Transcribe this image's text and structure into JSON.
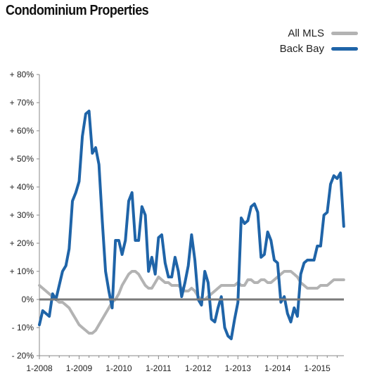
{
  "title": "Condominium Properties",
  "colors": {
    "all_mls": "#b3b3b3",
    "back_bay": "#1f64a8",
    "zero_line": "#7a7a7a",
    "axis": "#888888"
  },
  "chart_data": {
    "type": "line",
    "title": "Condominium Properties",
    "xlabel": "",
    "ylabel": "",
    "ylim": [
      -20,
      80
    ],
    "xlim": [
      2008.0,
      2015.67
    ],
    "grid": false,
    "legend_position": "top-right",
    "y_ticks": [
      {
        "value": 80,
        "label": "+ 80%"
      },
      {
        "value": 70,
        "label": "+ 70%"
      },
      {
        "value": 60,
        "label": "+ 60%"
      },
      {
        "value": 50,
        "label": "+ 50%"
      },
      {
        "value": 40,
        "label": "+ 40%"
      },
      {
        "value": 30,
        "label": "+ 30%"
      },
      {
        "value": 20,
        "label": "+ 20%"
      },
      {
        "value": 10,
        "label": "+ 10%"
      },
      {
        "value": 0,
        "label": "0%"
      },
      {
        "value": -10,
        "label": "- 10%"
      },
      {
        "value": -20,
        "label": "- 20%"
      }
    ],
    "x_ticks": [
      {
        "value": 2008,
        "label": "1-2008"
      },
      {
        "value": 2009,
        "label": "1-2009"
      },
      {
        "value": 2010,
        "label": "1-2010"
      },
      {
        "value": 2011,
        "label": "1-2011"
      },
      {
        "value": 2012,
        "label": "1-2012"
      },
      {
        "value": 2013,
        "label": "1-2013"
      },
      {
        "value": 2014,
        "label": "1-2014"
      },
      {
        "value": 2015,
        "label": "1-2015"
      }
    ],
    "series": [
      {
        "name": "All MLS",
        "points": [
          [
            2008.0,
            5
          ],
          [
            2008.083,
            4
          ],
          [
            2008.167,
            3
          ],
          [
            2008.25,
            2
          ],
          [
            2008.333,
            1
          ],
          [
            2008.417,
            0
          ],
          [
            2008.5,
            -1
          ],
          [
            2008.583,
            -1
          ],
          [
            2008.667,
            -2
          ],
          [
            2008.75,
            -3
          ],
          [
            2008.833,
            -5
          ],
          [
            2008.917,
            -7
          ],
          [
            2009.0,
            -9
          ],
          [
            2009.083,
            -10
          ],
          [
            2009.167,
            -11
          ],
          [
            2009.25,
            -12
          ],
          [
            2009.333,
            -12
          ],
          [
            2009.417,
            -11
          ],
          [
            2009.5,
            -9
          ],
          [
            2009.583,
            -7
          ],
          [
            2009.667,
            -5
          ],
          [
            2009.75,
            -3
          ],
          [
            2009.833,
            -1
          ],
          [
            2009.917,
            0
          ],
          [
            2010.0,
            2
          ],
          [
            2010.083,
            5
          ],
          [
            2010.167,
            7
          ],
          [
            2010.25,
            9
          ],
          [
            2010.333,
            10
          ],
          [
            2010.417,
            10
          ],
          [
            2010.5,
            9
          ],
          [
            2010.583,
            7
          ],
          [
            2010.667,
            5
          ],
          [
            2010.75,
            4
          ],
          [
            2010.833,
            4
          ],
          [
            2010.917,
            6
          ],
          [
            2011.0,
            8
          ],
          [
            2011.083,
            7
          ],
          [
            2011.167,
            6
          ],
          [
            2011.25,
            6
          ],
          [
            2011.333,
            5
          ],
          [
            2011.417,
            5
          ],
          [
            2011.5,
            5
          ],
          [
            2011.583,
            4
          ],
          [
            2011.667,
            3
          ],
          [
            2011.75,
            3
          ],
          [
            2011.833,
            4
          ],
          [
            2011.917,
            3
          ],
          [
            2012.0,
            1
          ],
          [
            2012.083,
            0
          ],
          [
            2012.167,
            0
          ],
          [
            2012.25,
            1
          ],
          [
            2012.333,
            2
          ],
          [
            2012.417,
            3
          ],
          [
            2012.5,
            4
          ],
          [
            2012.583,
            5
          ],
          [
            2012.667,
            5
          ],
          [
            2012.75,
            5
          ],
          [
            2012.833,
            5
          ],
          [
            2012.917,
            5
          ],
          [
            2013.0,
            6
          ],
          [
            2013.083,
            5
          ],
          [
            2013.167,
            5
          ],
          [
            2013.25,
            7
          ],
          [
            2013.333,
            7
          ],
          [
            2013.417,
            6
          ],
          [
            2013.5,
            6
          ],
          [
            2013.583,
            7
          ],
          [
            2013.667,
            7
          ],
          [
            2013.75,
            6
          ],
          [
            2013.833,
            6
          ],
          [
            2013.917,
            7
          ],
          [
            2014.0,
            8
          ],
          [
            2014.083,
            9
          ],
          [
            2014.167,
            10
          ],
          [
            2014.25,
            10
          ],
          [
            2014.333,
            10
          ],
          [
            2014.417,
            9
          ],
          [
            2014.5,
            8
          ],
          [
            2014.583,
            6
          ],
          [
            2014.667,
            5
          ],
          [
            2014.75,
            4
          ],
          [
            2014.833,
            4
          ],
          [
            2014.917,
            4
          ],
          [
            2015.0,
            4
          ],
          [
            2015.083,
            5
          ],
          [
            2015.167,
            5
          ],
          [
            2015.25,
            5
          ],
          [
            2015.333,
            6
          ],
          [
            2015.417,
            7
          ],
          [
            2015.5,
            7
          ],
          [
            2015.583,
            7
          ],
          [
            2015.667,
            7
          ]
        ]
      },
      {
        "name": "Back Bay",
        "points": [
          [
            2008.0,
            -9
          ],
          [
            2008.083,
            -4
          ],
          [
            2008.167,
            -5
          ],
          [
            2008.25,
            -6
          ],
          [
            2008.333,
            2
          ],
          [
            2008.417,
            0
          ],
          [
            2008.5,
            5
          ],
          [
            2008.583,
            10
          ],
          [
            2008.667,
            12
          ],
          [
            2008.75,
            18
          ],
          [
            2008.833,
            35
          ],
          [
            2008.917,
            38
          ],
          [
            2009.0,
            42
          ],
          [
            2009.083,
            58
          ],
          [
            2009.167,
            66
          ],
          [
            2009.25,
            67
          ],
          [
            2009.333,
            52
          ],
          [
            2009.417,
            54
          ],
          [
            2009.5,
            48
          ],
          [
            2009.583,
            28
          ],
          [
            2009.667,
            10
          ],
          [
            2009.75,
            3
          ],
          [
            2009.833,
            -3
          ],
          [
            2009.917,
            21
          ],
          [
            2010.0,
            21
          ],
          [
            2010.083,
            16
          ],
          [
            2010.167,
            21
          ],
          [
            2010.25,
            35
          ],
          [
            2010.333,
            38
          ],
          [
            2010.417,
            21
          ],
          [
            2010.5,
            21
          ],
          [
            2010.583,
            33
          ],
          [
            2010.667,
            30
          ],
          [
            2010.75,
            10
          ],
          [
            2010.833,
            15
          ],
          [
            2010.917,
            9
          ],
          [
            2011.0,
            22
          ],
          [
            2011.083,
            23
          ],
          [
            2011.167,
            13
          ],
          [
            2011.25,
            8
          ],
          [
            2011.333,
            8
          ],
          [
            2011.417,
            15
          ],
          [
            2011.5,
            10
          ],
          [
            2011.583,
            1
          ],
          [
            2011.667,
            6
          ],
          [
            2011.75,
            12
          ],
          [
            2011.833,
            23
          ],
          [
            2011.917,
            14
          ],
          [
            2012.0,
            0
          ],
          [
            2012.083,
            -2
          ],
          [
            2012.167,
            10
          ],
          [
            2012.25,
            6
          ],
          [
            2012.333,
            -7
          ],
          [
            2012.417,
            -8
          ],
          [
            2012.5,
            -3
          ],
          [
            2012.583,
            1
          ],
          [
            2012.667,
            -10
          ],
          [
            2012.75,
            -13
          ],
          [
            2012.833,
            -14
          ],
          [
            2012.917,
            -7
          ],
          [
            2013.0,
            -1
          ],
          [
            2013.083,
            29
          ],
          [
            2013.167,
            27
          ],
          [
            2013.25,
            28
          ],
          [
            2013.333,
            33
          ],
          [
            2013.417,
            34
          ],
          [
            2013.5,
            31
          ],
          [
            2013.583,
            15
          ],
          [
            2013.667,
            16
          ],
          [
            2013.75,
            24
          ],
          [
            2013.833,
            21
          ],
          [
            2013.917,
            14
          ],
          [
            2014.0,
            13
          ],
          [
            2014.083,
            -1
          ],
          [
            2014.167,
            1
          ],
          [
            2014.25,
            -5
          ],
          [
            2014.333,
            -8
          ],
          [
            2014.417,
            -3
          ],
          [
            2014.5,
            -6
          ],
          [
            2014.583,
            9
          ],
          [
            2014.667,
            13
          ],
          [
            2014.75,
            14
          ],
          [
            2014.833,
            14
          ],
          [
            2014.917,
            14
          ],
          [
            2015.0,
            19
          ],
          [
            2015.083,
            19
          ],
          [
            2015.167,
            30
          ],
          [
            2015.25,
            31
          ],
          [
            2015.333,
            41
          ],
          [
            2015.417,
            44
          ],
          [
            2015.5,
            43
          ],
          [
            2015.583,
            45
          ],
          [
            2015.667,
            26
          ]
        ]
      }
    ]
  }
}
